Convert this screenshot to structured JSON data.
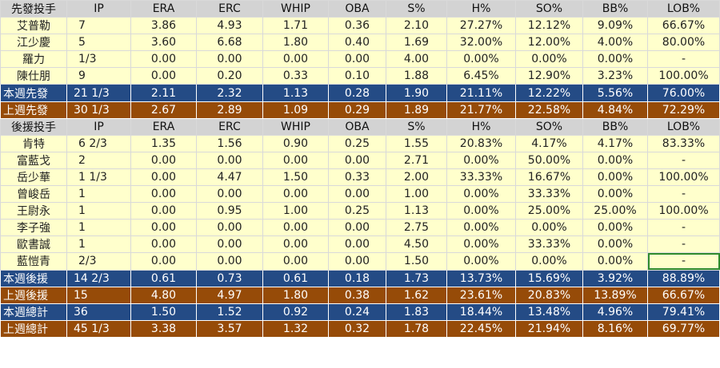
{
  "columns": [
    "IP",
    "ERA",
    "ERC",
    "WHIP",
    "OBA",
    "S%",
    "H%",
    "SO%",
    "BB%",
    "LOB%"
  ],
  "sections": [
    {
      "header": "先發投手",
      "rows": [
        {
          "style": "body",
          "cells": [
            "艾普勒",
            "7",
            "3.86",
            "4.93",
            "1.71",
            "0.36",
            "2.10",
            "27.27%",
            "12.12%",
            "9.09%",
            "66.67%"
          ]
        },
        {
          "style": "body",
          "cells": [
            "江少慶",
            "5",
            "3.60",
            "6.68",
            "1.80",
            "0.40",
            "1.69",
            "32.00%",
            "12.00%",
            "4.00%",
            "80.00%"
          ]
        },
        {
          "style": "body",
          "cells": [
            "羅力",
            "1/3",
            "0.00",
            "0.00",
            "0.00",
            "0.00",
            "4.00",
            "0.00%",
            "0.00%",
            "0.00%",
            "-"
          ]
        },
        {
          "style": "body",
          "cells": [
            "陳仕朋",
            "9",
            "0.00",
            "0.20",
            "0.33",
            "0.10",
            "1.88",
            "6.45%",
            "12.90%",
            "3.23%",
            "100.00%"
          ]
        },
        {
          "style": "blue",
          "cells": [
            "本週先發",
            "21 1/3",
            "2.11",
            "2.32",
            "1.13",
            "0.28",
            "1.90",
            "21.11%",
            "12.22%",
            "5.56%",
            "76.00%"
          ]
        },
        {
          "style": "brown",
          "cells": [
            "上週先發",
            "30 1/3",
            "2.67",
            "2.89",
            "1.09",
            "0.29",
            "1.89",
            "21.77%",
            "22.58%",
            "4.84%",
            "72.29%"
          ]
        }
      ]
    },
    {
      "header": "後援投手",
      "rows": [
        {
          "style": "body",
          "cells": [
            "肯特",
            "6 2/3",
            "1.35",
            "1.56",
            "0.90",
            "0.25",
            "1.55",
            "20.83%",
            "4.17%",
            "4.17%",
            "83.33%"
          ]
        },
        {
          "style": "body",
          "cells": [
            "富藍戈",
            "2",
            "0.00",
            "0.00",
            "0.00",
            "0.00",
            "2.71",
            "0.00%",
            "50.00%",
            "0.00%",
            "-"
          ]
        },
        {
          "style": "body",
          "cells": [
            "岳少華",
            "1 1/3",
            "0.00",
            "4.47",
            "1.50",
            "0.33",
            "2.00",
            "33.33%",
            "16.67%",
            "0.00%",
            "100.00%"
          ]
        },
        {
          "style": "body",
          "cells": [
            "曾峻岳",
            "1",
            "0.00",
            "0.00",
            "0.00",
            "0.00",
            "1.00",
            "0.00%",
            "33.33%",
            "0.00%",
            "-"
          ]
        },
        {
          "style": "body",
          "cells": [
            "王尉永",
            "1",
            "0.00",
            "0.95",
            "1.00",
            "0.25",
            "1.13",
            "0.00%",
            "25.00%",
            "25.00%",
            "100.00%"
          ]
        },
        {
          "style": "body",
          "cells": [
            "李子強",
            "1",
            "0.00",
            "0.00",
            "0.00",
            "0.00",
            "2.75",
            "0.00%",
            "0.00%",
            "0.00%",
            "-"
          ]
        },
        {
          "style": "body",
          "cells": [
            "歐書誠",
            "1",
            "0.00",
            "0.00",
            "0.00",
            "0.00",
            "4.50",
            "0.00%",
            "33.33%",
            "0.00%",
            "-"
          ]
        },
        {
          "style": "body",
          "cells": [
            "藍愷青",
            "2/3",
            "0.00",
            "0.00",
            "0.00",
            "0.00",
            "1.50",
            "0.00%",
            "0.00%",
            "0.00%",
            "-"
          ]
        },
        {
          "style": "blue",
          "cells": [
            "本週後援",
            "14 2/3",
            "0.61",
            "0.73",
            "0.61",
            "0.18",
            "1.73",
            "13.73%",
            "15.69%",
            "3.92%",
            "88.89%"
          ]
        },
        {
          "style": "brown",
          "cells": [
            "上週後援",
            "15",
            "4.80",
            "4.97",
            "1.80",
            "0.38",
            "1.62",
            "23.61%",
            "20.83%",
            "13.89%",
            "66.67%"
          ]
        },
        {
          "style": "blue",
          "cells": [
            "本週總計",
            "36",
            "1.50",
            "1.52",
            "0.92",
            "0.24",
            "1.83",
            "18.44%",
            "13.48%",
            "4.96%",
            "79.41%"
          ]
        },
        {
          "style": "brown",
          "cells": [
            "上週總計",
            "45 1/3",
            "3.38",
            "3.57",
            "1.32",
            "0.32",
            "1.78",
            "22.45%",
            "21.94%",
            "8.16%",
            "69.77%"
          ]
        }
      ]
    }
  ],
  "colors": {
    "header_bg": "#d3d3d3",
    "body_bg": "#ffffcc",
    "this_week_bg": "#244b85",
    "last_week_bg": "#964b08",
    "selection_border": "#2e8b2e"
  }
}
